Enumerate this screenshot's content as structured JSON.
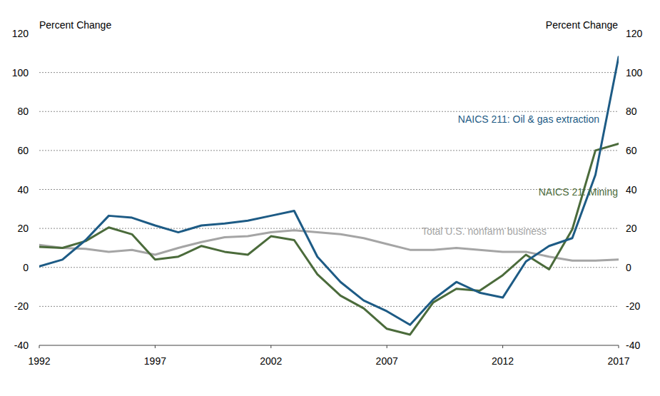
{
  "chart_data": {
    "type": "line",
    "y_label": "Percent Change",
    "y2_label": "Percent Change",
    "x": [
      1992,
      1993,
      1994,
      1995,
      1996,
      1997,
      1998,
      1999,
      2000,
      2001,
      2002,
      2003,
      2004,
      2005,
      2006,
      2007,
      2008,
      2009,
      2010,
      2011,
      2012,
      2013,
      2014,
      2015,
      2016,
      2017
    ],
    "xlim": [
      1992,
      2017
    ],
    "xticks": [
      1992,
      1997,
      2002,
      2007,
      2012,
      2017
    ],
    "ylim": [
      -40,
      120
    ],
    "yticks": [
      -40,
      -20,
      0,
      20,
      40,
      60,
      80,
      100,
      120
    ],
    "y2lim": [
      -40,
      120
    ],
    "y2ticks": [
      -40,
      -20,
      0,
      20,
      40,
      60,
      80,
      100,
      120
    ],
    "grid": true,
    "series": [
      {
        "name": "NAICS 211: Oil & gas extraction",
        "color": "#1d5b85",
        "values": [
          0.5,
          4,
          14,
          26.5,
          25.5,
          21.5,
          18,
          21.5,
          22.5,
          24,
          26.5,
          29,
          5.5,
          -7.5,
          -17,
          -22.5,
          -29.5,
          -16.5,
          -7.5,
          -13,
          -15.5,
          3,
          11,
          15,
          47.5,
          108
        ]
      },
      {
        "name": "NAICS 21: Mining",
        "color": "#4b6b3b",
        "values": [
          10.5,
          10,
          13.5,
          20.5,
          17,
          4,
          5.5,
          11,
          8,
          6.5,
          16,
          14,
          -3.5,
          -14.5,
          -21,
          -31.5,
          -34.5,
          -18,
          -11,
          -12,
          -4,
          6.5,
          -1,
          19.5,
          60,
          63.5
        ]
      },
      {
        "name": "Total U.S. nonfarm business",
        "color": "#a5a5a5",
        "values": [
          11.5,
          10,
          9.5,
          8,
          9,
          6.5,
          10,
          13,
          15.5,
          16,
          18,
          19,
          18,
          17,
          15,
          12,
          9,
          9,
          10,
          9,
          8,
          8,
          5.5,
          3.5,
          3.5,
          4
        ]
      }
    ]
  }
}
